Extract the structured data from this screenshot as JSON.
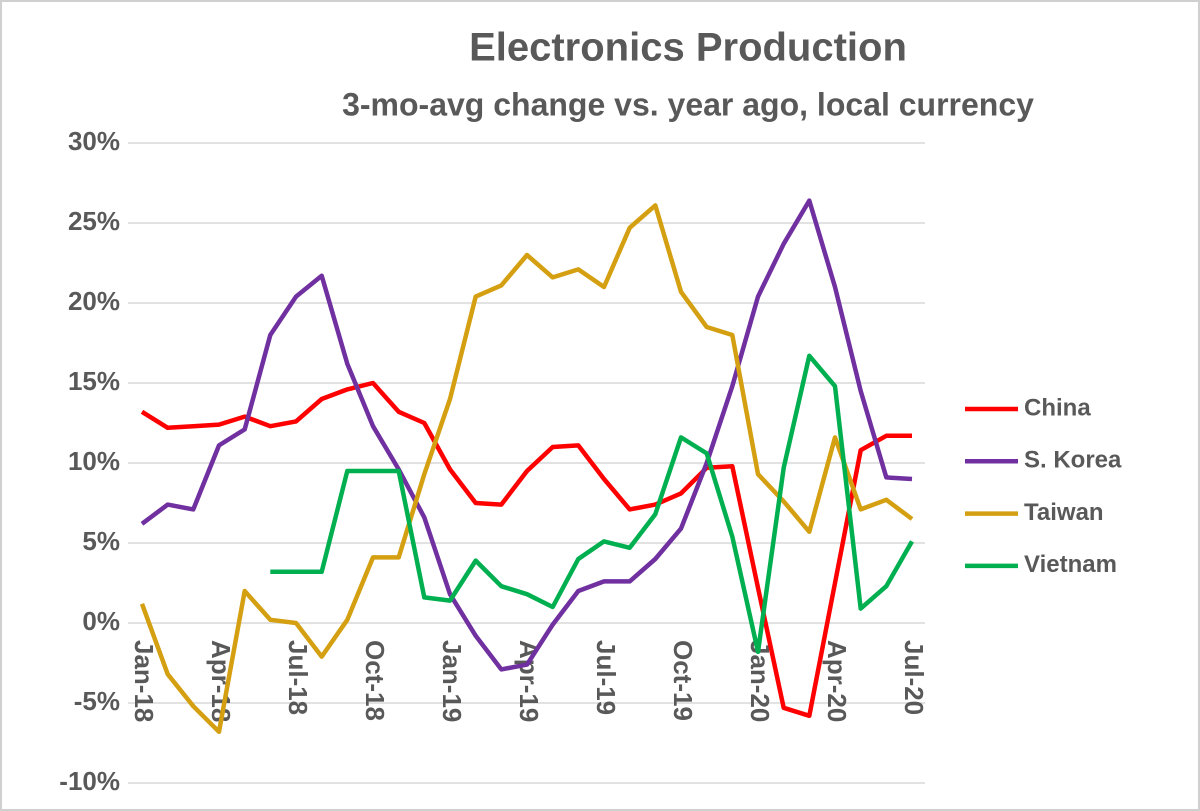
{
  "chart_data": {
    "type": "line",
    "title": "Electronics Production",
    "subtitle": "3-mo-avg change vs. year ago, local currency",
    "categories": [
      "Jan-18",
      null,
      null,
      "Apr-18",
      null,
      null,
      "Jul-18",
      null,
      null,
      "Oct-18",
      null,
      null,
      "Jan-19",
      null,
      null,
      "Apr-19",
      null,
      null,
      "Jul-19",
      null,
      null,
      "Oct-19",
      null,
      null,
      "Jan-20",
      null,
      null,
      "Apr-20",
      null,
      null,
      "Jul-20"
    ],
    "series": [
      {
        "name": "China",
        "color": "#ff0000",
        "values": [
          13.2,
          12.2,
          12.3,
          12.4,
          12.9,
          12.3,
          12.6,
          14.0,
          14.6,
          15.0,
          13.2,
          12.5,
          9.6,
          7.5,
          7.4,
          9.5,
          11.0,
          11.1,
          9.0,
          7.1,
          7.4,
          8.1,
          9.7,
          9.8,
          2.2,
          -5.3,
          -5.8,
          2.5,
          10.8,
          11.7,
          11.7
        ]
      },
      {
        "name": "S. Korea",
        "color": "#7030a0",
        "values": [
          6.2,
          7.4,
          7.1,
          11.1,
          12.1,
          18.0,
          20.4,
          21.7,
          16.2,
          12.3,
          9.6,
          6.6,
          1.8,
          -0.8,
          -2.9,
          -2.6,
          -0.1,
          2.0,
          2.6,
          2.6,
          4.0,
          5.9,
          10.0,
          14.8,
          20.4,
          23.7,
          26.4,
          21.0,
          14.5,
          9.1,
          9.0
        ]
      },
      {
        "name": "Taiwan",
        "color": "#d4a012",
        "values": [
          1.2,
          -3.2,
          -5.2,
          -6.8,
          2.0,
          0.2,
          0.0,
          -2.1,
          0.2,
          4.1,
          4.1,
          9.3,
          14.0,
          20.4,
          21.1,
          23.0,
          21.6,
          22.1,
          21.0,
          24.7,
          26.1,
          20.7,
          18.5,
          18.0,
          9.3,
          7.6,
          5.7,
          11.6,
          7.1,
          7.7,
          6.5
        ]
      },
      {
        "name": "Vietnam",
        "color": "#00b050",
        "values": [
          null,
          null,
          null,
          null,
          null,
          3.2,
          3.2,
          3.2,
          9.5,
          9.5,
          9.5,
          1.6,
          1.4,
          3.9,
          2.3,
          1.8,
          1.0,
          4.0,
          5.1,
          4.7,
          6.8,
          11.6,
          10.6,
          5.4,
          -1.8,
          9.7,
          16.7,
          14.8,
          0.9,
          2.3,
          5.1
        ]
      }
    ],
    "ylim": [
      -10,
      30
    ],
    "yticks": [
      {
        "value": -10,
        "label": "-10%"
      },
      {
        "value": -5,
        "label": "-5%"
      },
      {
        "value": 0,
        "label": "0%"
      },
      {
        "value": 5,
        "label": "5%"
      },
      {
        "value": 10,
        "label": "10%"
      },
      {
        "value": 15,
        "label": "15%"
      },
      {
        "value": 20,
        "label": "20%"
      },
      {
        "value": 25,
        "label": "25%"
      },
      {
        "value": 30,
        "label": "30%"
      }
    ],
    "grid": true,
    "legend": "right"
  }
}
